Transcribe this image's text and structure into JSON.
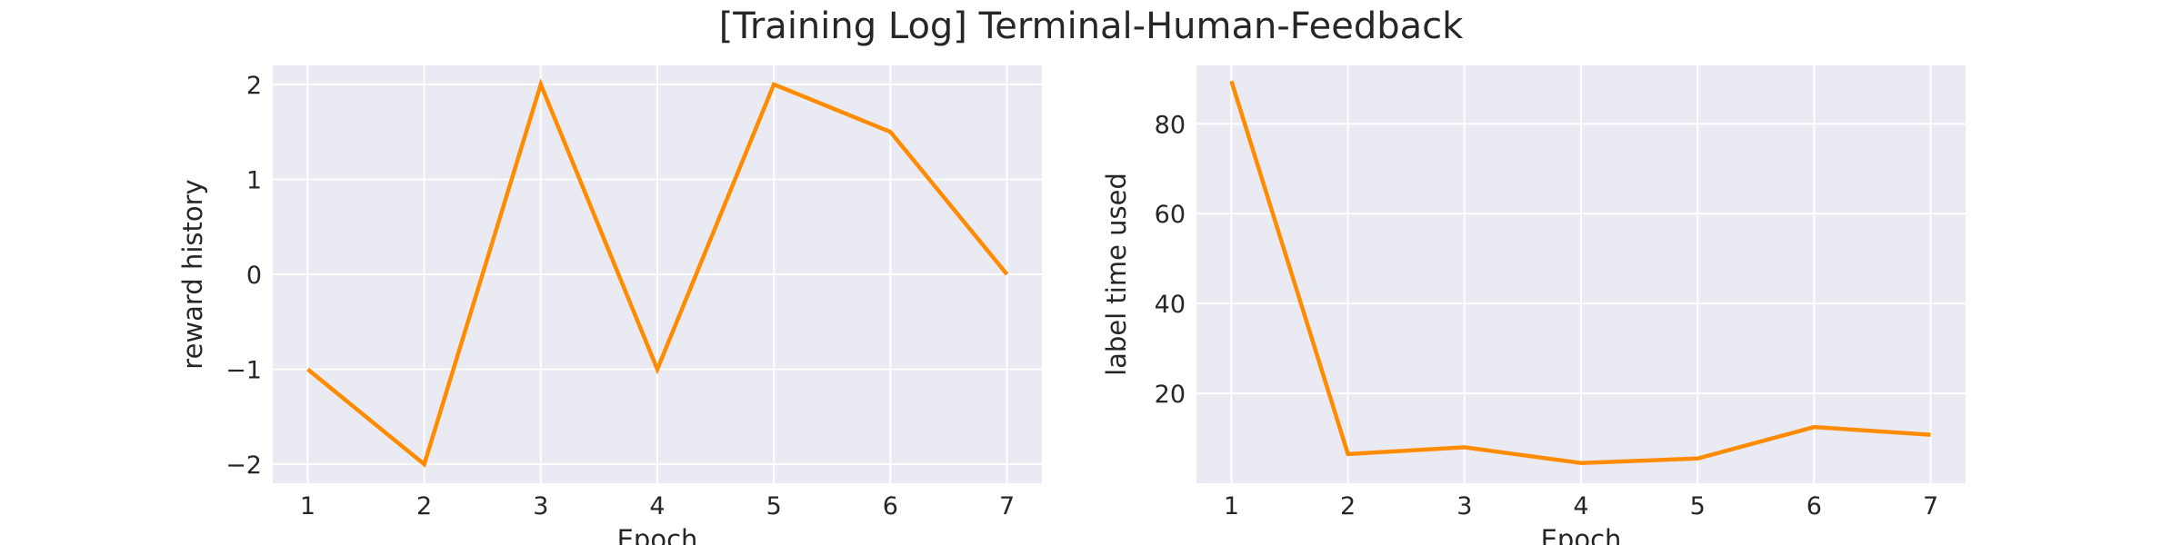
{
  "figure": {
    "title": "[Training Log] Terminal-Human-Feedback"
  },
  "chart_data": [
    {
      "type": "line",
      "title": "",
      "xlabel": "Epoch",
      "ylabel": "reward history",
      "x": [
        1,
        2,
        3,
        4,
        5,
        6,
        7
      ],
      "series": [
        {
          "values": [
            -1,
            -2,
            2,
            -1,
            2,
            1.5,
            0
          ],
          "color": "#ff8c00"
        }
      ],
      "xlim": [
        0.7,
        7.3
      ],
      "ylim": [
        -2.2,
        2.2
      ],
      "xticks": [
        1,
        2,
        3,
        4,
        5,
        6,
        7
      ],
      "yticks": [
        -2,
        -1,
        0,
        1,
        2
      ],
      "xticklabels": [
        "1",
        "2",
        "3",
        "4",
        "5",
        "6",
        "7"
      ],
      "yticklabels": [
        "−2",
        "−1",
        "0",
        "1",
        "2"
      ],
      "grid": true,
      "legend": "none"
    },
    {
      "type": "line",
      "title": "",
      "xlabel": "Epoch",
      "ylabel": "label time used",
      "x": [
        1,
        2,
        3,
        4,
        5,
        6,
        7
      ],
      "series": [
        {
          "values": [
            89.5,
            6.5,
            8,
            4.5,
            5.5,
            12.5,
            10.8
          ],
          "color": "#ff8c00"
        }
      ],
      "xlim": [
        0.7,
        7.3
      ],
      "ylim": [
        0,
        93
      ],
      "xticks": [
        1,
        2,
        3,
        4,
        5,
        6,
        7
      ],
      "yticks": [
        20,
        40,
        60,
        80
      ],
      "xticklabels": [
        "1",
        "2",
        "3",
        "4",
        "5",
        "6",
        "7"
      ],
      "yticklabels": [
        "20",
        "40",
        "60",
        "80"
      ],
      "grid": true,
      "legend": "none"
    }
  ],
  "style": {
    "axes_bg": "#eaeaf2",
    "grid_color": "#ffffff",
    "line_color": "#ff8c00",
    "text_color": "#262626"
  }
}
